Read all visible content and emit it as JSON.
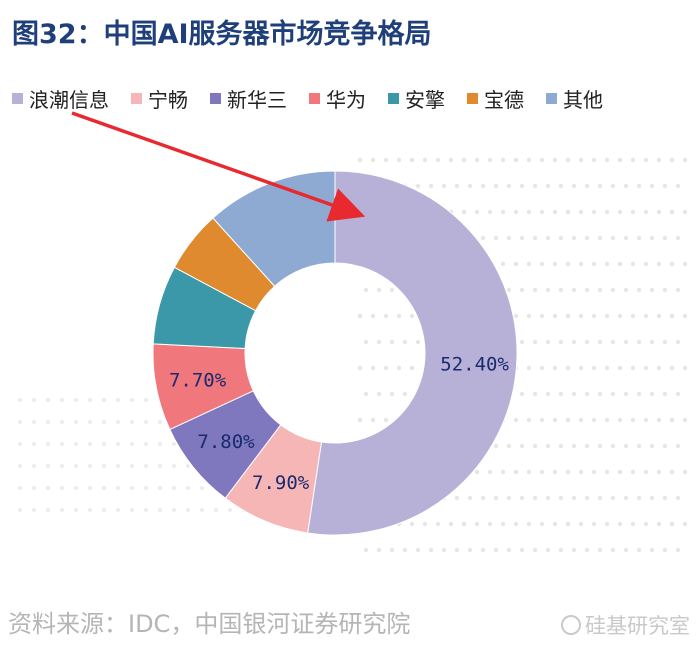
{
  "title": "图32：中国AI服务器市场竞争格局",
  "source": "资料来源：IDC，中国银河证券研究院",
  "watermark": "硅基研究室",
  "chart_data": {
    "type": "pie",
    "donut": true,
    "legend_position": "top",
    "categories": [
      "浪潮信息",
      "宁畅",
      "新华三",
      "华为",
      "安擎",
      "宝德",
      "其他"
    ],
    "values": [
      52.4,
      7.9,
      7.8,
      7.7,
      7.0,
      5.5,
      11.7
    ],
    "data_labels": [
      "52.40%",
      "7.90%",
      "7.80%",
      "7.70%",
      "",
      "",
      ""
    ],
    "colors": [
      "#b7b1d8",
      "#f6b6b6",
      "#7f78bf",
      "#f0787c",
      "#3a98a8",
      "#e08a30",
      "#8eaad3"
    ],
    "annotation": "red arrow pointing to 浪潮信息 slice"
  }
}
